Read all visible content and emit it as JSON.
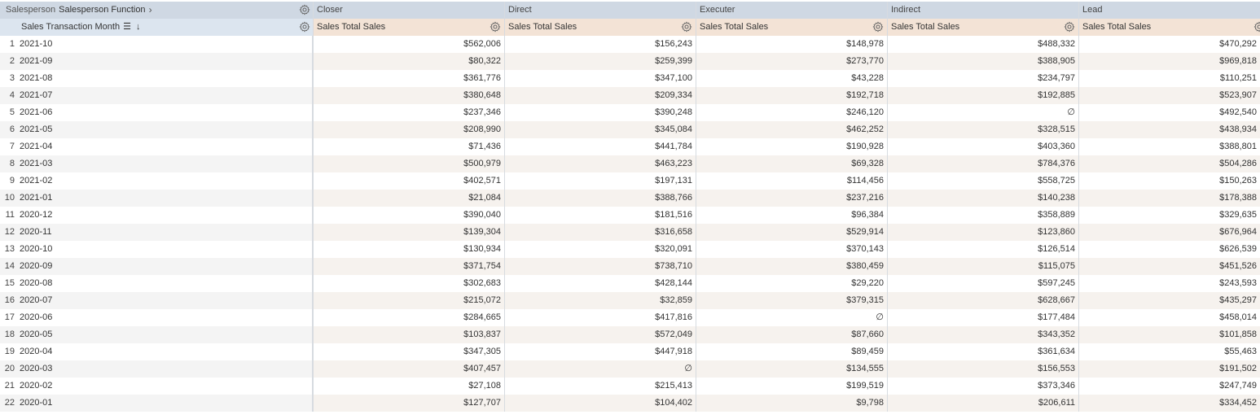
{
  "header": {
    "dimension_prefix": "Salesperson",
    "dimension_name": "Salesperson Function",
    "row_dimension": "Sales Transaction Month",
    "columns": [
      "Closer",
      "Direct",
      "Executer",
      "Indirect",
      "Lead"
    ],
    "measure_label": "Sales Total Sales"
  },
  "icons": {
    "expand": "chevron-right-icon",
    "settings": "gear-icon",
    "sort": "sort-lines-icon",
    "sort_direction": "arrow-down-icon"
  },
  "rows": [
    {
      "idx": "1",
      "month": "2021-10",
      "values": [
        "$562,006",
        "$156,243",
        "$148,978",
        "$488,332",
        "$470,292"
      ]
    },
    {
      "idx": "2",
      "month": "2021-09",
      "values": [
        "$80,322",
        "$259,399",
        "$273,770",
        "$388,905",
        "$969,818"
      ]
    },
    {
      "idx": "3",
      "month": "2021-08",
      "values": [
        "$361,776",
        "$347,100",
        "$43,228",
        "$234,797",
        "$110,251"
      ]
    },
    {
      "idx": "4",
      "month": "2021-07",
      "values": [
        "$380,648",
        "$209,334",
        "$192,718",
        "$192,885",
        "$523,907"
      ]
    },
    {
      "idx": "5",
      "month": "2021-06",
      "values": [
        "$237,346",
        "$390,248",
        "$246,120",
        "∅",
        "$492,540"
      ]
    },
    {
      "idx": "6",
      "month": "2021-05",
      "values": [
        "$208,990",
        "$345,084",
        "$462,252",
        "$328,515",
        "$438,934"
      ]
    },
    {
      "idx": "7",
      "month": "2021-04",
      "values": [
        "$71,436",
        "$441,784",
        "$190,928",
        "$403,360",
        "$388,801"
      ]
    },
    {
      "idx": "8",
      "month": "2021-03",
      "values": [
        "$500,979",
        "$463,223",
        "$69,328",
        "$784,376",
        "$504,286"
      ]
    },
    {
      "idx": "9",
      "month": "2021-02",
      "values": [
        "$402,571",
        "$197,131",
        "$114,456",
        "$558,725",
        "$150,263"
      ]
    },
    {
      "idx": "10",
      "month": "2021-01",
      "values": [
        "$21,084",
        "$388,766",
        "$237,216",
        "$140,238",
        "$178,388"
      ]
    },
    {
      "idx": "11",
      "month": "2020-12",
      "values": [
        "$390,040",
        "$181,516",
        "$96,384",
        "$358,889",
        "$329,635"
      ]
    },
    {
      "idx": "12",
      "month": "2020-11",
      "values": [
        "$139,304",
        "$316,658",
        "$529,914",
        "$123,860",
        "$676,964"
      ]
    },
    {
      "idx": "13",
      "month": "2020-10",
      "values": [
        "$130,934",
        "$320,091",
        "$370,143",
        "$126,514",
        "$626,539"
      ]
    },
    {
      "idx": "14",
      "month": "2020-09",
      "values": [
        "$371,754",
        "$738,710",
        "$380,459",
        "$115,075",
        "$451,526"
      ]
    },
    {
      "idx": "15",
      "month": "2020-08",
      "values": [
        "$302,683",
        "$428,144",
        "$29,220",
        "$597,245",
        "$243,593"
      ]
    },
    {
      "idx": "16",
      "month": "2020-07",
      "values": [
        "$215,072",
        "$32,859",
        "$379,315",
        "$628,667",
        "$435,297"
      ]
    },
    {
      "idx": "17",
      "month": "2020-06",
      "values": [
        "$284,665",
        "$417,816",
        "∅",
        "$177,484",
        "$458,014"
      ]
    },
    {
      "idx": "18",
      "month": "2020-05",
      "values": [
        "$103,837",
        "$572,049",
        "$87,660",
        "$343,352",
        "$101,858"
      ]
    },
    {
      "idx": "19",
      "month": "2020-04",
      "values": [
        "$347,305",
        "$447,918",
        "$89,459",
        "$361,634",
        "$55,463"
      ]
    },
    {
      "idx": "20",
      "month": "2020-03",
      "values": [
        "$407,457",
        "∅",
        "$134,555",
        "$156,553",
        "$191,502"
      ]
    },
    {
      "idx": "21",
      "month": "2020-02",
      "values": [
        "$27,108",
        "$215,413",
        "$199,519",
        "$373,346",
        "$247,749"
      ]
    },
    {
      "idx": "22",
      "month": "2020-01",
      "values": [
        "$127,707",
        "$104,402",
        "$9,798",
        "$206,611",
        "$334,452"
      ]
    }
  ]
}
